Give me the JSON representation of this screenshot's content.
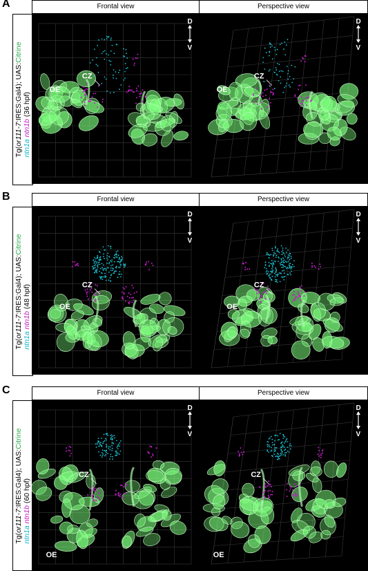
{
  "panels": [
    {
      "letter": "A",
      "headers": {
        "left": "Frontal view",
        "right": "Perspective view"
      },
      "side": {
        "prefix": "Tg(",
        "gene": "or111-7",
        "suffix": ":IRES:Gal4); UAS:",
        "citrine": "Citrine",
        "ntn1a": "ntn1a",
        "ntn1b": "ntn1b",
        "stage": "(36 hpf)"
      },
      "frontal": {
        "oe": "OE",
        "cz": "CZ"
      },
      "perspective": {
        "oe": "OE",
        "cz": "CZ"
      },
      "axis": {
        "d": "D",
        "v": "V"
      }
    },
    {
      "letter": "B",
      "headers": {
        "left": "Frontal view",
        "right": "Perspective view"
      },
      "side": {
        "prefix": "Tg(",
        "gene": "or111-7",
        "suffix": ":IRES:Gal4); UAS:",
        "citrine": "Citrine",
        "ntn1a": "ntn1a",
        "ntn1b": "ntn1b",
        "stage": "(48 hpf)"
      },
      "frontal": {
        "oe": "OE",
        "cz": "CZ"
      },
      "perspective": {
        "oe": "OE",
        "cz": "CZ"
      },
      "axis": {
        "d": "D",
        "v": "V"
      }
    },
    {
      "letter": "C",
      "headers": {
        "left": "Frontal view",
        "right": "Perspective view"
      },
      "side": {
        "prefix": "Tg(",
        "gene": "or111-7",
        "suffix": ":IRES:Gal4); UAS:",
        "citrine": "Citrine",
        "ntn1a": "ntn1a",
        "ntn1b": "ntn1b",
        "stage": "(60 hpf)"
      },
      "frontal": {
        "oe": "OE",
        "cz": "CZ"
      },
      "perspective": {
        "oe": "OE",
        "cz": "CZ"
      },
      "axis": {
        "d": "D",
        "v": "V"
      }
    }
  ],
  "colors": {
    "citrine": "#7dff7d",
    "ntn1a": "#19c6d6",
    "ntn1b": "#c21cc7",
    "grid": "#3a3a3a"
  }
}
